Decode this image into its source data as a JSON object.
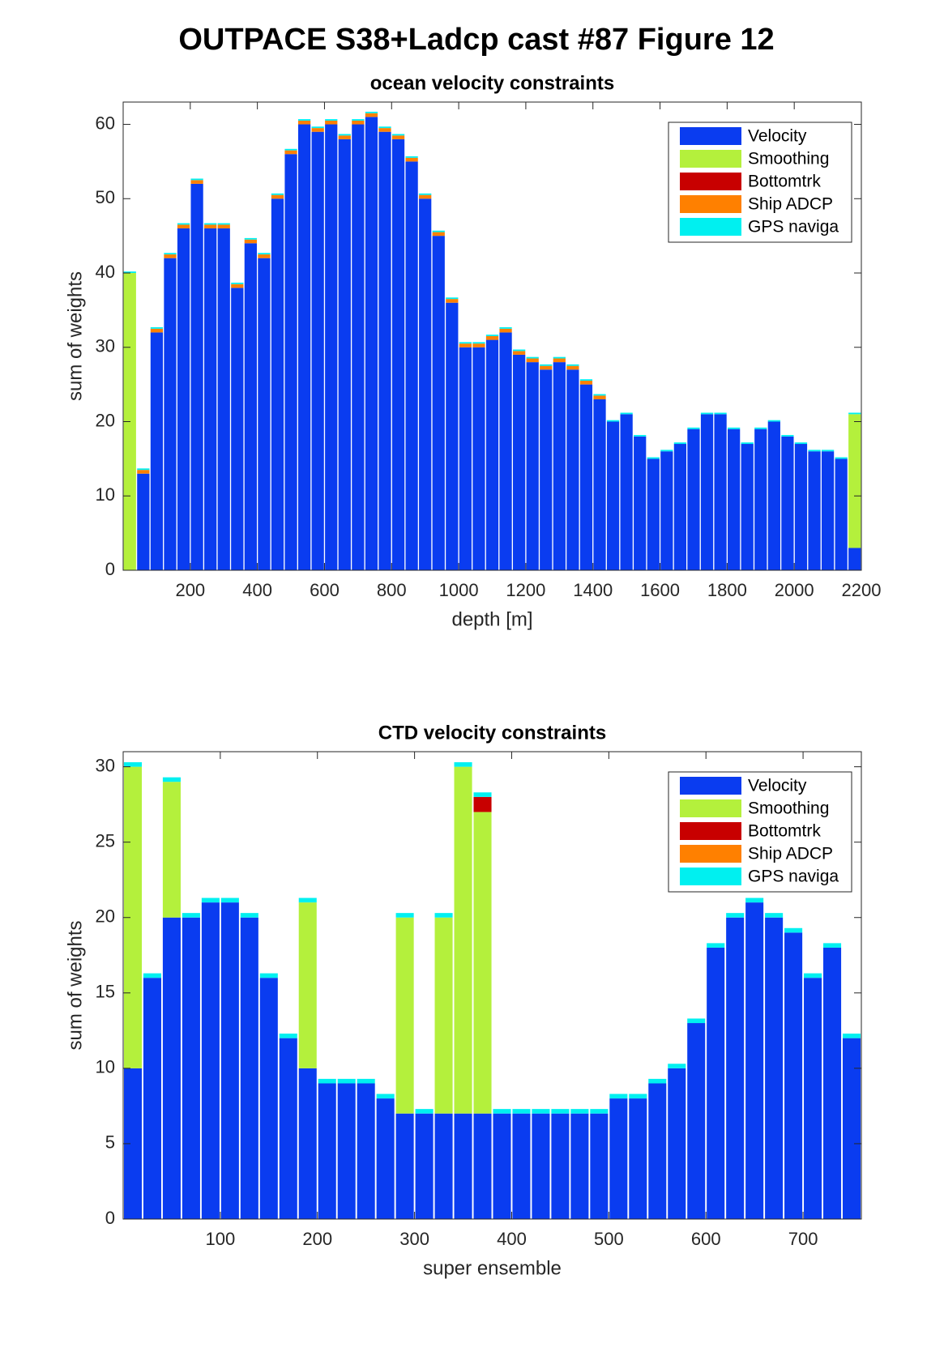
{
  "title": "OUTPACE S38+Ladcp cast #87  Figure 12",
  "chart_data": [
    {
      "type": "bar",
      "stacked": true,
      "title": "ocean velocity constraints",
      "xlabel": "depth [m]",
      "ylabel": "sum of weights",
      "x": [
        20,
        60,
        100,
        140,
        180,
        220,
        260,
        300,
        340,
        380,
        420,
        460,
        500,
        540,
        580,
        620,
        660,
        700,
        740,
        780,
        820,
        860,
        900,
        940,
        980,
        1020,
        1060,
        1100,
        1140,
        1180,
        1220,
        1260,
        1300,
        1340,
        1380,
        1420,
        1460,
        1500,
        1540,
        1580,
        1620,
        1660,
        1700,
        1740,
        1780,
        1820,
        1860,
        1900,
        1940,
        1980,
        2020,
        2060,
        2100,
        2140,
        2180
      ],
      "series": [
        {
          "name": "Velocity",
          "color": "#0a3cf0",
          "values": [
            0,
            13,
            32,
            42,
            46,
            52,
            46,
            46,
            38,
            44,
            42,
            50,
            56,
            60,
            59,
            60,
            58,
            60,
            61,
            59,
            58,
            55,
            50,
            45,
            36,
            30,
            30,
            31,
            32,
            29,
            28,
            27,
            28,
            27,
            25,
            23,
            20,
            21,
            18,
            15,
            16,
            17,
            19,
            21,
            21,
            19,
            17,
            19,
            20,
            18,
            17,
            16,
            16,
            15,
            3
          ]
        },
        {
          "name": "Smoothing",
          "color": "#b4f03c",
          "values": [
            40,
            0,
            0,
            0,
            0,
            0,
            0,
            0,
            0,
            0,
            0,
            0,
            0,
            0,
            0,
            0,
            0,
            0,
            0,
            0,
            0,
            0,
            0,
            0,
            0,
            0,
            0,
            0,
            0,
            0,
            0,
            0,
            0,
            0,
            0,
            0,
            0,
            0,
            0,
            0,
            0,
            0,
            0,
            0,
            0,
            0,
            0,
            0,
            0,
            0,
            0,
            0,
            0,
            0,
            18
          ]
        },
        {
          "name": "Bottomtrk",
          "color": "#c80000",
          "values": [
            0,
            0,
            0,
            0,
            0,
            0,
            0,
            0,
            0,
            0,
            0,
            0,
            0,
            0,
            0,
            0,
            0,
            0,
            0,
            0,
            0,
            0,
            0,
            0,
            0,
            0,
            0,
            0,
            0,
            0,
            0,
            0,
            0,
            0,
            0,
            0,
            0,
            0,
            0,
            0,
            0,
            0,
            0,
            0,
            0,
            0,
            0,
            0,
            0,
            0,
            0,
            0,
            0,
            0,
            0
          ]
        },
        {
          "name": "Ship ADCP",
          "color": "#ff8000",
          "values": [
            0,
            0.5,
            0.5,
            0.5,
            0.5,
            0.5,
            0.5,
            0.5,
            0.5,
            0.5,
            0.5,
            0.5,
            0.5,
            0.5,
            0.5,
            0.5,
            0.5,
            0.5,
            0.5,
            0.5,
            0.5,
            0.5,
            0.5,
            0.5,
            0.5,
            0.5,
            0.5,
            0.5,
            0.5,
            0.5,
            0.5,
            0.5,
            0.5,
            0.5,
            0.5,
            0.5,
            0,
            0,
            0,
            0,
            0,
            0,
            0,
            0,
            0,
            0,
            0,
            0,
            0,
            0,
            0,
            0,
            0,
            0,
            0
          ]
        },
        {
          "name": "GPS naviga",
          "color": "#00f0f0",
          "values": [
            0.2,
            0.2,
            0.2,
            0.2,
            0.2,
            0.2,
            0.2,
            0.2,
            0.2,
            0.2,
            0.2,
            0.2,
            0.2,
            0.2,
            0.2,
            0.2,
            0.2,
            0.2,
            0.2,
            0.2,
            0.2,
            0.2,
            0.2,
            0.2,
            0.2,
            0.2,
            0.2,
            0.2,
            0.2,
            0.2,
            0.2,
            0.2,
            0.2,
            0.2,
            0.2,
            0.2,
            0.2,
            0.2,
            0.2,
            0.2,
            0.2,
            0.2,
            0.2,
            0.2,
            0.2,
            0.2,
            0.2,
            0.2,
            0.2,
            0.2,
            0.2,
            0.2,
            0.2,
            0.2,
            0.2
          ]
        }
      ],
      "xlim": [
        0,
        2200
      ],
      "ylim": [
        0,
        63
      ],
      "xticks": [
        200,
        400,
        600,
        800,
        1000,
        1200,
        1400,
        1600,
        1800,
        2000,
        2200
      ],
      "yticks": [
        0,
        10,
        20,
        30,
        40,
        50,
        60
      ],
      "legend": "upper right"
    },
    {
      "type": "bar",
      "stacked": true,
      "title": "CTD velocity constraints",
      "xlabel": "super ensemble",
      "ylabel": "sum of weights",
      "x": [
        10,
        30,
        50,
        70,
        90,
        110,
        130,
        150,
        170,
        190,
        210,
        230,
        250,
        270,
        290,
        310,
        330,
        350,
        370,
        390,
        410,
        430,
        450,
        470,
        490,
        510,
        530,
        550,
        570,
        590,
        610,
        630,
        650,
        670,
        690,
        710,
        730,
        750
      ],
      "series": [
        {
          "name": "Velocity",
          "color": "#0a3cf0",
          "values": [
            10,
            16,
            20,
            20,
            21,
            21,
            20,
            16,
            12,
            10,
            9,
            9,
            9,
            8,
            7,
            7,
            7,
            7,
            7,
            7,
            7,
            7,
            7,
            7,
            7,
            8,
            8,
            9,
            10,
            13,
            18,
            20,
            21,
            20,
            19,
            16,
            18,
            12
          ]
        },
        {
          "name": "Smoothing",
          "color": "#b4f03c",
          "values": [
            20,
            0,
            9,
            0,
            0,
            0,
            0,
            0,
            0,
            11,
            0,
            0,
            0,
            0,
            13,
            0,
            13,
            23,
            20,
            0,
            0,
            0,
            0,
            0,
            0,
            0,
            0,
            0,
            0,
            0,
            0,
            0,
            0,
            0,
            0,
            0,
            0,
            0
          ]
        },
        {
          "name": "Bottomtrk",
          "color": "#c80000",
          "values": [
            0,
            0,
            0,
            0,
            0,
            0,
            0,
            0,
            0,
            0,
            0,
            0,
            0,
            0,
            0,
            0,
            0,
            0,
            1,
            0,
            0,
            0,
            0,
            0,
            0,
            0,
            0,
            0,
            0,
            0,
            0,
            0,
            0,
            0,
            0,
            0,
            0,
            0
          ]
        },
        {
          "name": "Ship ADCP",
          "color": "#ff8000",
          "values": [
            0,
            0,
            0,
            0,
            0,
            0,
            0,
            0,
            0,
            0,
            0,
            0,
            0,
            0,
            0,
            0,
            0,
            0,
            0,
            0,
            0,
            0,
            0,
            0,
            0,
            0,
            0,
            0,
            0,
            0,
            0,
            0,
            0,
            0,
            0,
            0,
            0,
            0
          ]
        },
        {
          "name": "GPS naviga",
          "color": "#00f0f0",
          "values": [
            0.3,
            0.3,
            0.3,
            0.3,
            0.3,
            0.3,
            0.3,
            0.3,
            0.3,
            0.3,
            0.3,
            0.3,
            0.3,
            0.3,
            0.3,
            0.3,
            0.3,
            0.3,
            0.3,
            0.3,
            0.3,
            0.3,
            0.3,
            0.3,
            0.3,
            0.3,
            0.3,
            0.3,
            0.3,
            0.3,
            0.3,
            0.3,
            0.3,
            0.3,
            0.3,
            0.3,
            0.3,
            0.3
          ]
        }
      ],
      "xlim": [
        0,
        760
      ],
      "ylim": [
        0,
        31
      ],
      "xticks": [
        100,
        200,
        300,
        400,
        500,
        600,
        700
      ],
      "yticks": [
        0,
        5,
        10,
        15,
        20,
        25,
        30
      ],
      "legend": "upper right"
    }
  ]
}
